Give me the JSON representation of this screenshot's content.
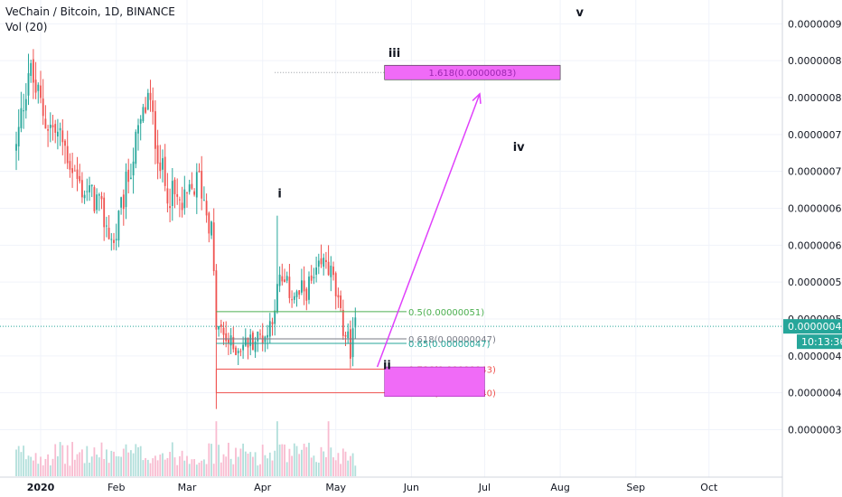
{
  "header": {
    "symbol": "VeChain / Bitcoin, 1D, BINANCE",
    "indicator": "Vol (20)"
  },
  "colors": {
    "up": "#26a69a",
    "down": "#ef5350",
    "vol_up": "#b2dfdb",
    "vol_down": "#f8bbd0",
    "magenta": "#e040fb",
    "box_fill": "#f06bf7",
    "last_price_bg": "#26a69a",
    "grid": "#f0f3fa",
    "axis_text": "#131722"
  },
  "chart_data": {
    "type": "candlestick",
    "ylim": [
      3.2e-07,
      9.2e-07
    ],
    "y_ticks": [
      "0.00000035",
      "0.00000040",
      "0.00000045",
      "0.00000050",
      "0.00000055",
      "0.00000060",
      "0.00000065",
      "0.00000070",
      "0.00000075",
      "0.00000080",
      "0.00000085",
      "0.00000090"
    ],
    "x_ticks": [
      "2020",
      "Feb",
      "Mar",
      "Apr",
      "May",
      "Jun",
      "Jul",
      "Aug",
      "Sep",
      "Oct"
    ],
    "last_price": "0.00000049",
    "countdown": "10:13:36",
    "ohlc_anchors": [
      {
        "date": "2019-12-22",
        "close": 7.3e-07
      },
      {
        "date": "2019-12-27",
        "close": 8.4e-07
      },
      {
        "date": "2020-01-03",
        "close": 7.7e-07
      },
      {
        "date": "2020-01-10",
        "close": 7.4e-07
      },
      {
        "date": "2020-01-17",
        "close": 6.8e-07
      },
      {
        "date": "2020-01-24",
        "close": 6.6e-07
      },
      {
        "date": "2020-01-31",
        "close": 6e-07
      },
      {
        "date": "2020-02-07",
        "close": 7.1e-07
      },
      {
        "date": "2020-02-14",
        "close": 8e-07
      },
      {
        "date": "2020-02-21",
        "close": 6.8e-07
      },
      {
        "date": "2020-02-28",
        "close": 6.5e-07
      },
      {
        "date": "2020-03-06",
        "close": 6.9e-07
      },
      {
        "date": "2020-03-11",
        "close": 6.2e-07
      },
      {
        "date": "2020-03-13",
        "close": 4.9e-07
      },
      {
        "date": "2020-03-20",
        "close": 4.6e-07
      },
      {
        "date": "2020-03-27",
        "close": 4.7e-07
      },
      {
        "date": "2020-04-03",
        "close": 4.8e-07
      },
      {
        "date": "2020-04-08",
        "close": 5.5e-07
      },
      {
        "date": "2020-04-15",
        "close": 5.3e-07
      },
      {
        "date": "2020-04-22",
        "close": 5.5e-07
      },
      {
        "date": "2020-04-27",
        "close": 5.8e-07
      },
      {
        "date": "2020-04-30",
        "close": 5.5e-07
      },
      {
        "date": "2020-05-03",
        "close": 5e-07
      },
      {
        "date": "2020-05-07",
        "close": 4.6e-07
      },
      {
        "date": "2020-05-09",
        "close": 4.9e-07
      }
    ],
    "fib_levels": [
      {
        "label": "0.5(0.00000051)",
        "value": 5.1e-07,
        "color": "#4caf50"
      },
      {
        "label": "0.618(0.00000047)",
        "value": 4.73e-07,
        "color": "#787b86"
      },
      {
        "label": "0.65(0.00000047)",
        "value": 4.67e-07,
        "color": "#26a69a"
      },
      {
        "label": "0.786(0.00000043)",
        "value": 4.32e-07,
        "color": "#ef5350"
      },
      {
        "label": "0.886(0.00000040)",
        "value": 4e-07,
        "color": "#ef5350"
      }
    ],
    "target": {
      "label": "1.618(0.00000083)",
      "value": 8.34e-07
    },
    "wave_labels": [
      {
        "text": "i",
        "date": "2020-04-08",
        "value": 6.65e-07
      },
      {
        "text": "ii",
        "date": "2020-05-22",
        "value": 4.32e-07
      },
      {
        "text": "iii",
        "date": "2020-05-25",
        "value": 8.55e-07
      },
      {
        "text": "iv",
        "date": "2020-07-15",
        "value": 7.28e-07
      },
      {
        "text": "v",
        "date": "2020-08-09",
        "value": 9.1e-07
      }
    ]
  }
}
